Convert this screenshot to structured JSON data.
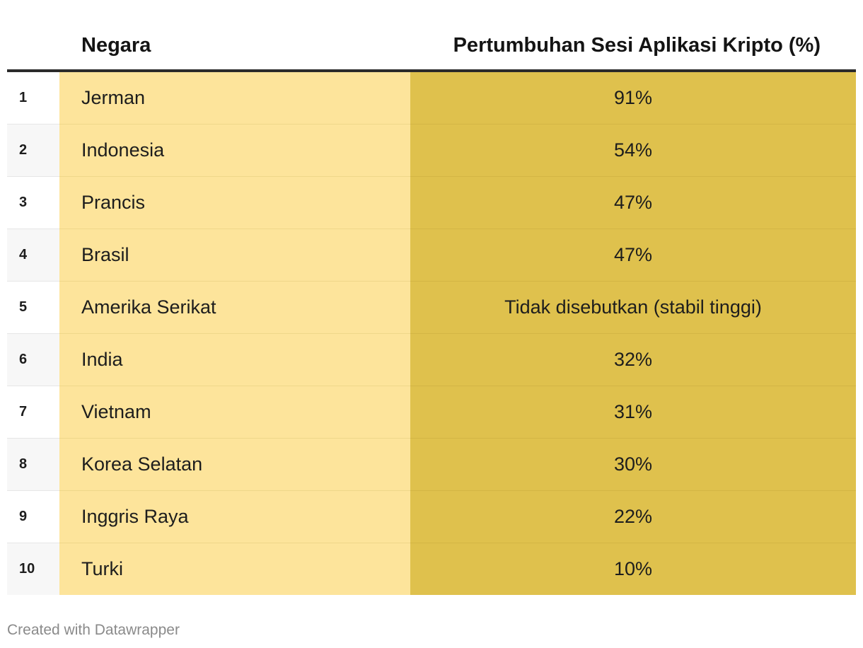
{
  "chart_data": {
    "type": "table",
    "columns": [
      "",
      "Negara",
      "Pertumbuhan Sesi Aplikasi Kripto (%)"
    ],
    "rows": [
      {
        "rank": "1",
        "country": "Jerman",
        "growth": "91%"
      },
      {
        "rank": "2",
        "country": "Indonesia",
        "growth": "54%"
      },
      {
        "rank": "3",
        "country": "Prancis",
        "growth": "47%"
      },
      {
        "rank": "4",
        "country": "Brasil",
        "growth": "47%"
      },
      {
        "rank": "5",
        "country": "Amerika Serikat",
        "growth": "Tidak disebutkan (stabil tinggi)"
      },
      {
        "rank": "6",
        "country": "India",
        "growth": "32%"
      },
      {
        "rank": "7",
        "country": "Vietnam",
        "growth": "31%"
      },
      {
        "rank": "8",
        "country": "Korea Selatan",
        "growth": "30%"
      },
      {
        "rank": "9",
        "country": "Inggris Raya",
        "growth": "22%"
      },
      {
        "rank": "10",
        "country": "Turki",
        "growth": "10%"
      }
    ],
    "colors": {
      "rank_background": "#f7f7f7",
      "country_background": "#fde49b",
      "growth_background": "#dfc14d",
      "header_rule": "#2b2b2b"
    }
  },
  "footer": {
    "credit": "Created with Datawrapper"
  }
}
